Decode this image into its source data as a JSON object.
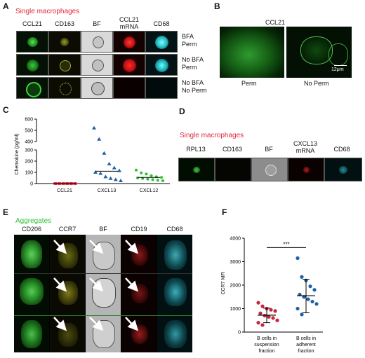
{
  "panelA": {
    "label": "A",
    "title": "Single macrophages",
    "headers": [
      "CCL21",
      "CD163",
      "BF",
      "CCL21\nmRNA",
      "CD68"
    ],
    "header_lines": [
      [
        "CCL21"
      ],
      [
        "CD163"
      ],
      [
        "BF"
      ],
      [
        "CCL21",
        "mRNA"
      ],
      [
        "CD68"
      ]
    ],
    "conditions": [
      [
        "BFA",
        "Perm"
      ],
      [
        "No BFA",
        "Perm"
      ],
      [
        "No BFA",
        "No Perm"
      ]
    ]
  },
  "panelB": {
    "label": "B",
    "title": "CCL21",
    "left_caption": "Perm",
    "right_caption": "No Perm",
    "scale_bar": "12μm"
  },
  "panelC": {
    "label": "C",
    "chart_data": {
      "type": "scatter",
      "ylabel": "Chemokine (pg/ml)",
      "categories": [
        "CCL21",
        "CXCL13",
        "CXCL12"
      ],
      "y_ticks_lower": [
        0,
        100,
        200,
        300
      ],
      "y_ticks_upper": [
        400,
        500,
        600
      ],
      "series": [
        {
          "category": "CCL21",
          "color": "#e0283c",
          "marker": "circle",
          "values": [
            0,
            0,
            0,
            0,
            0,
            0,
            0,
            0,
            0,
            0,
            0,
            0
          ],
          "median": 0
        },
        {
          "category": "CXCL13",
          "color": "#1f5fa8",
          "marker": "triangle",
          "values": [
            520,
            420,
            270,
            175,
            140,
            115,
            100,
            90,
            60,
            45,
            35,
            25
          ],
          "median": 110
        },
        {
          "category": "CXCL12",
          "color": "#2fbf2f",
          "marker": "circle",
          "values": [
            120,
            95,
            85,
            70,
            60,
            55,
            50,
            45,
            40,
            35,
            30,
            25
          ],
          "median": 55
        }
      ]
    }
  },
  "panelD": {
    "label": "D",
    "title": "Single macrophages",
    "header_lines": [
      [
        "RPL13"
      ],
      [
        "CD163"
      ],
      [
        "BF"
      ],
      [
        "CXCL13",
        "mRNA"
      ],
      [
        "CD68"
      ]
    ]
  },
  "panelE": {
    "label": "E",
    "title": "Aggregates",
    "headers": [
      "CD206",
      "CCR7",
      "BF",
      "CD19",
      "CD68"
    ]
  },
  "panelF": {
    "label": "F",
    "chart_data": {
      "type": "scatter",
      "ylabel": "CCR7 MFI",
      "ylim": [
        0,
        4000
      ],
      "y_ticks": [
        0,
        1000,
        2000,
        3000,
        4000
      ],
      "categories": [
        [
          "B cells in",
          "suspension",
          "fraction"
        ],
        [
          "B cells in",
          "adherent",
          "fraction"
        ]
      ],
      "significance": "***",
      "series": [
        {
          "category": "B cells in suspension fraction",
          "color": "#c9253c",
          "values": [
            1250,
            1100,
            1000,
            950,
            900,
            800,
            700,
            650,
            600,
            500,
            400,
            300
          ],
          "mean": 720,
          "sd_low": 400,
          "sd_high": 1020
        },
        {
          "category": "B cells in adherent fraction",
          "color": "#1f5fa8",
          "values": [
            3150,
            2350,
            2200,
            1950,
            1800,
            1600,
            1500,
            1400,
            1300,
            1200,
            1000,
            750
          ],
          "mean": 1550,
          "sd_low": 820,
          "sd_high": 2250
        }
      ]
    }
  }
}
